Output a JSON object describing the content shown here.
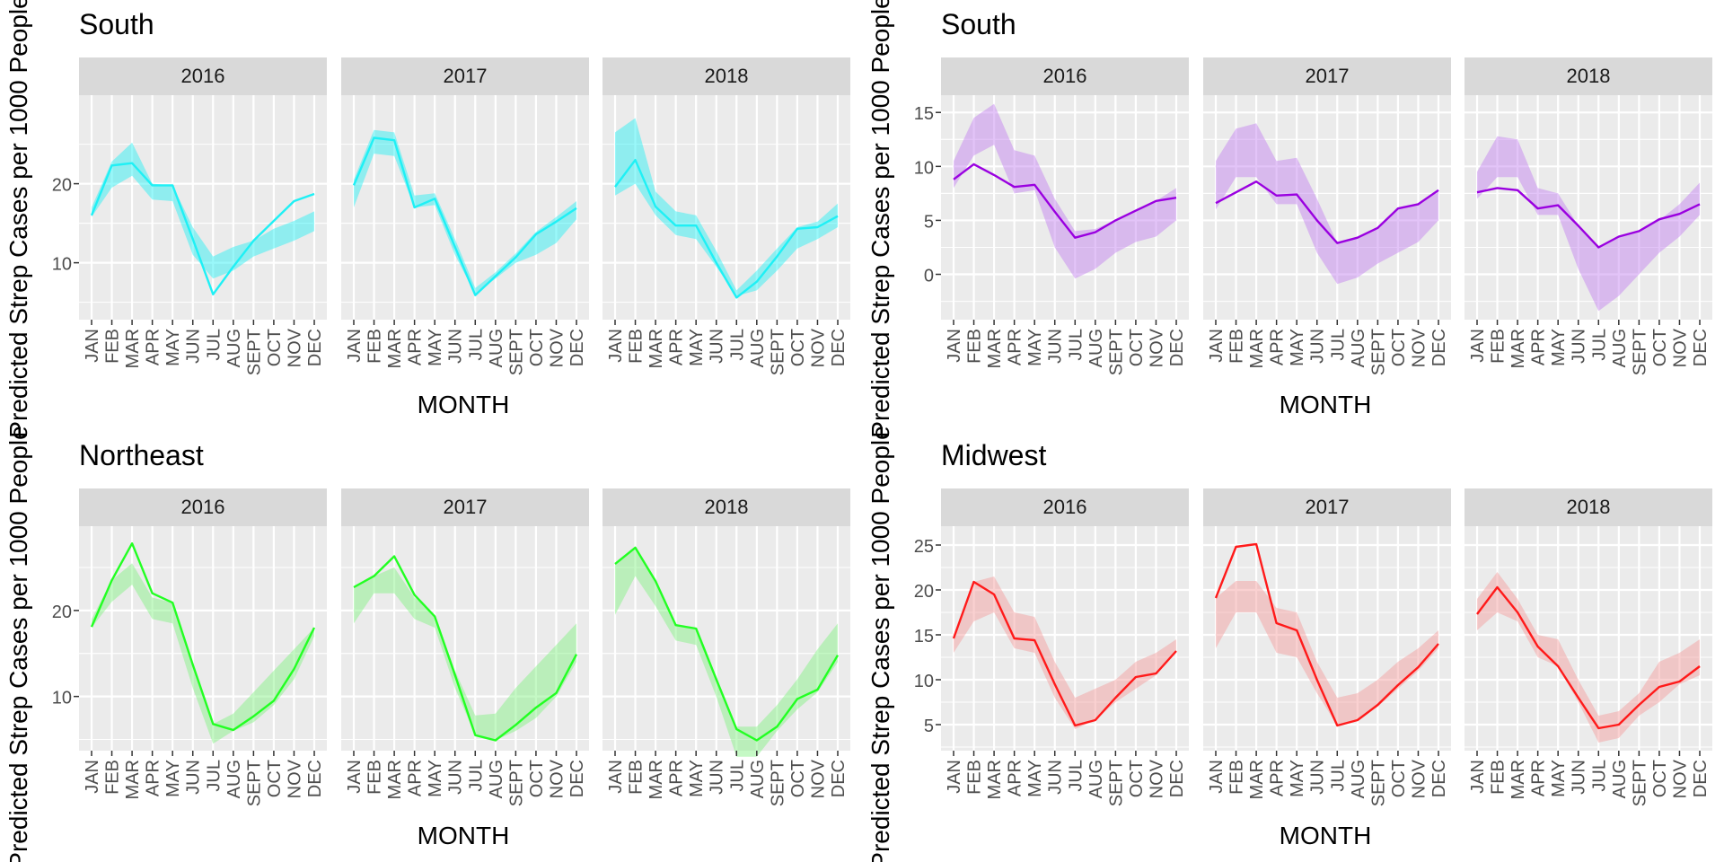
{
  "months": [
    "JAN",
    "FEB",
    "MAR",
    "APR",
    "MAY",
    "JUN",
    "JUL",
    "AUG",
    "SEPT",
    "OCT",
    "NOV",
    "DEC"
  ],
  "colors": {
    "panel_bg": "#EBEBEB",
    "strip_bg": "#D9D9D9",
    "grid": "#FFFFFF",
    "axis_text": "#4D4D4D",
    "title": "#000000"
  },
  "chart_data": [
    {
      "type": "line",
      "title": "South",
      "xlabel": "MONTH",
      "ylabel": "Predicted Strep Cases per 1000 People",
      "ylim": [
        2.8,
        31.2
      ],
      "yticks": [
        10,
        20
      ],
      "color": "#1FF0F5",
      "band_color": "#1FF0F5",
      "grid": true,
      "series": [
        {
          "facet": "2016",
          "values": [
            16.0,
            22.3,
            22.6,
            19.8,
            19.8,
            13.0,
            6.0,
            9.5,
            12.8,
            15.3,
            17.8,
            18.7
          ],
          "lower": [
            15.8,
            19.5,
            21.0,
            18.0,
            17.8,
            11.0,
            8.0,
            9.0,
            10.8,
            11.8,
            12.8,
            14.0
          ],
          "upper": [
            17.0,
            22.8,
            25.2,
            20.0,
            19.8,
            14.5,
            10.8,
            12.0,
            12.8,
            14.3,
            15.3,
            16.5
          ]
        },
        {
          "facet": "2017",
          "values": [
            19.8,
            25.8,
            25.5,
            17.0,
            18.1,
            12.0,
            5.9,
            8.3,
            10.7,
            13.6,
            15.2,
            16.9
          ],
          "lower": [
            17.0,
            23.8,
            23.5,
            17.0,
            17.3,
            11.0,
            6.0,
            8.0,
            10.0,
            11.0,
            12.5,
            15.5
          ],
          "upper": [
            20.5,
            26.8,
            26.5,
            18.5,
            18.8,
            13.0,
            6.8,
            8.8,
            11.2,
            13.9,
            15.8,
            17.8
          ]
        },
        {
          "facet": "2018",
          "values": [
            19.6,
            23.0,
            17.1,
            14.7,
            14.7,
            10.0,
            5.6,
            7.6,
            10.8,
            14.3,
            14.5,
            15.9
          ],
          "lower": [
            18.5,
            20.0,
            16.0,
            13.5,
            13.0,
            9.5,
            5.8,
            6.5,
            9.0,
            11.8,
            13.0,
            14.5
          ],
          "upper": [
            26.5,
            28.3,
            19.0,
            16.5,
            16.0,
            11.5,
            6.5,
            9.0,
            11.8,
            14.5,
            15.2,
            17.5
          ]
        }
      ]
    },
    {
      "type": "line",
      "title": "South",
      "xlabel": "MONTH",
      "ylabel": "Predicted Strep Cases per 1000 People",
      "ylim": [
        -4.2,
        16.6
      ],
      "yticks": [
        0,
        5,
        10,
        15
      ],
      "color": "#9A00E0",
      "band_color": "#C27CF0",
      "grid": true,
      "series": [
        {
          "facet": "2016",
          "values": [
            8.8,
            10.2,
            9.2,
            8.1,
            8.3,
            5.8,
            3.4,
            3.9,
            5.0,
            5.9,
            6.8,
            7.1
          ],
          "lower": [
            8.0,
            11.0,
            12.0,
            7.5,
            7.8,
            2.5,
            -0.4,
            0.5,
            2.0,
            3.0,
            3.5,
            5.0
          ],
          "upper": [
            10.5,
            14.5,
            15.8,
            11.5,
            11.0,
            7.0,
            4.0,
            4.2,
            5.0,
            5.9,
            6.8,
            8.0
          ]
        },
        {
          "facet": "2017",
          "values": [
            6.6,
            7.6,
            8.6,
            7.3,
            7.4,
            5.0,
            2.9,
            3.4,
            4.3,
            6.1,
            6.5,
            7.8
          ],
          "lower": [
            6.0,
            9.0,
            9.0,
            6.5,
            6.5,
            2.0,
            -0.9,
            -0.3,
            1.0,
            2.0,
            3.0,
            5.0
          ],
          "upper": [
            10.5,
            13.5,
            14.0,
            10.5,
            10.8,
            7.0,
            2.9,
            3.4,
            4.3,
            6.1,
            6.5,
            7.8
          ]
        },
        {
          "facet": "2018",
          "values": [
            7.6,
            8.0,
            7.8,
            6.1,
            6.4,
            4.5,
            2.5,
            3.5,
            4.0,
            5.1,
            5.6,
            6.5
          ],
          "lower": [
            7.0,
            9.0,
            9.0,
            5.5,
            5.5,
            0.5,
            -3.4,
            -2.0,
            0.0,
            2.0,
            3.5,
            5.5
          ],
          "upper": [
            9.5,
            12.8,
            12.5,
            8.0,
            7.5,
            4.5,
            2.5,
            3.5,
            4.0,
            5.0,
            6.5,
            8.5
          ]
        }
      ]
    },
    {
      "type": "line",
      "title": "Northeast",
      "xlabel": "MONTH",
      "ylabel": "Predicted Strep Cases per 1000 People",
      "ylim": [
        3.7,
        29.8
      ],
      "yticks": [
        10,
        20
      ],
      "color": "#22FF22",
      "band_color": "#7FF27F",
      "grid": true,
      "series": [
        {
          "facet": "2016",
          "values": [
            18.1,
            23.5,
            27.8,
            22.0,
            20.9,
            13.7,
            6.8,
            6.1,
            7.7,
            9.5,
            13.2,
            18.0
          ],
          "lower": [
            18.0,
            21.0,
            23.0,
            19.0,
            18.5,
            11.0,
            4.5,
            6.0,
            7.0,
            9.0,
            12.0,
            17.0
          ],
          "upper": [
            19.0,
            23.5,
            25.5,
            21.5,
            20.9,
            13.7,
            6.8,
            8.0,
            10.5,
            13.0,
            15.5,
            18.0
          ]
        },
        {
          "facet": "2017",
          "values": [
            22.7,
            24.0,
            26.3,
            21.8,
            19.3,
            12.5,
            5.5,
            4.9,
            6.7,
            8.7,
            10.4,
            14.9
          ],
          "lower": [
            18.5,
            22.0,
            22.0,
            19.0,
            18.0,
            11.0,
            5.5,
            4.9,
            6.0,
            7.5,
            10.0,
            14.0
          ],
          "upper": [
            22.7,
            24.0,
            25.0,
            21.5,
            19.5,
            13.0,
            7.8,
            8.0,
            11.0,
            13.5,
            16.0,
            18.5
          ]
        },
        {
          "facet": "2018",
          "values": [
            25.4,
            27.3,
            23.4,
            18.3,
            17.9,
            12.0,
            6.2,
            4.9,
            6.5,
            9.7,
            10.8,
            14.8
          ],
          "lower": [
            19.5,
            24.0,
            20.5,
            16.5,
            16.0,
            10.0,
            3.0,
            3.0,
            6.0,
            8.5,
            10.5,
            14.0
          ],
          "upper": [
            25.4,
            27.3,
            23.4,
            18.3,
            17.9,
            12.0,
            6.5,
            6.5,
            9.0,
            12.0,
            15.5,
            18.5
          ]
        }
      ]
    },
    {
      "type": "line",
      "title": "Midwest",
      "xlabel": "MONTH",
      "ylabel": "Predicted Strep Cases per 1000 People",
      "ylim": [
        2.1,
        27.1
      ],
      "yticks": [
        5,
        10,
        15,
        20,
        25
      ],
      "color": "#FF1A1A",
      "band_color": "#F59A9A",
      "grid": true,
      "series": [
        {
          "facet": "2016",
          "values": [
            14.6,
            20.9,
            19.5,
            14.6,
            14.4,
            9.5,
            4.9,
            5.5,
            8.0,
            10.3,
            10.7,
            13.2
          ],
          "lower": [
            13.0,
            16.5,
            17.5,
            13.5,
            13.0,
            8.0,
            4.5,
            5.5,
            7.5,
            9.0,
            10.5,
            13.0
          ],
          "upper": [
            15.0,
            20.9,
            21.5,
            17.5,
            17.0,
            12.0,
            8.0,
            9.0,
            10.0,
            12.0,
            13.0,
            14.5
          ]
        },
        {
          "facet": "2017",
          "values": [
            19.1,
            24.8,
            25.1,
            16.3,
            15.5,
            10.0,
            4.9,
            5.5,
            7.2,
            9.4,
            11.4,
            14.0
          ],
          "lower": [
            13.5,
            17.5,
            17.5,
            13.0,
            12.5,
            8.5,
            4.9,
            5.5,
            7.0,
            9.0,
            11.0,
            13.5
          ],
          "upper": [
            19.1,
            21.0,
            21.0,
            18.0,
            17.5,
            12.0,
            8.0,
            8.5,
            10.0,
            12.0,
            13.5,
            15.5
          ]
        },
        {
          "facet": "2018",
          "values": [
            17.3,
            20.3,
            17.5,
            13.7,
            11.5,
            8.0,
            4.6,
            5.0,
            7.2,
            9.2,
            9.8,
            11.5
          ],
          "lower": [
            15.5,
            17.5,
            16.5,
            12.5,
            11.5,
            7.5,
            3.0,
            3.5,
            6.0,
            7.5,
            9.5,
            10.5
          ],
          "upper": [
            19.0,
            22.0,
            19.0,
            15.0,
            14.5,
            10.0,
            6.0,
            6.5,
            8.5,
            12.0,
            13.0,
            14.5
          ]
        }
      ]
    }
  ]
}
